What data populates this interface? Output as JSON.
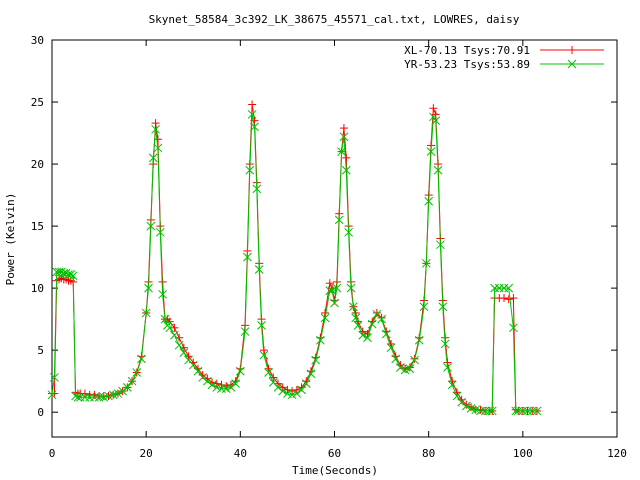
{
  "chart_data": {
    "type": "line",
    "title": "Skynet_58584_3c392_LK_38675_45571_cal.txt, LOWRES, daisy",
    "xlabel": "Time(Seconds)",
    "ylabel": "Power (Kelvin)",
    "xlim": [
      0,
      120
    ],
    "ylim": [
      -2,
      30
    ],
    "xticks": [
      0,
      20,
      40,
      60,
      80,
      100,
      120
    ],
    "yticks": [
      0,
      5,
      10,
      15,
      20,
      25,
      30
    ],
    "grid": false,
    "legend_position": "top-right",
    "series": [
      {
        "name": "XL-70.13 Tsys:70.91",
        "color": "#ff0000",
        "marker": "plus",
        "points": [
          [
            0,
            1.5
          ],
          [
            0.5,
            1.5
          ],
          [
            1,
            10.6
          ],
          [
            1.5,
            10.7
          ],
          [
            2,
            10.8
          ],
          [
            2.5,
            10.7
          ],
          [
            3,
            10.7
          ],
          [
            3.5,
            10.6
          ],
          [
            4,
            10.6
          ],
          [
            4.5,
            10.5
          ],
          [
            5,
            1.6
          ],
          [
            5.5,
            1.5
          ],
          [
            6,
            1.5
          ],
          [
            7,
            1.5
          ],
          [
            8,
            1.4
          ],
          [
            9,
            1.4
          ],
          [
            10,
            1.3
          ],
          [
            11,
            1.3
          ],
          [
            12,
            1.3
          ],
          [
            13,
            1.4
          ],
          [
            14,
            1.5
          ],
          [
            15,
            1.7
          ],
          [
            16,
            2.0
          ],
          [
            17,
            2.5
          ],
          [
            18,
            3.2
          ],
          [
            19,
            4.5
          ],
          [
            20,
            8.0
          ],
          [
            20.5,
            10.5
          ],
          [
            21,
            15.5
          ],
          [
            21.5,
            20.0
          ],
          [
            22,
            23.3
          ],
          [
            22.5,
            22.0
          ],
          [
            23,
            15.0
          ],
          [
            23.5,
            10.5
          ],
          [
            24,
            7.5
          ],
          [
            24.5,
            7.5
          ],
          [
            25,
            7.3
          ],
          [
            26,
            6.8
          ],
          [
            27,
            6.0
          ],
          [
            28,
            5.2
          ],
          [
            29,
            4.5
          ],
          [
            30,
            4.0
          ],
          [
            31,
            3.5
          ],
          [
            32,
            3.0
          ],
          [
            33,
            2.7
          ],
          [
            34,
            2.4
          ],
          [
            35,
            2.3
          ],
          [
            36,
            2.2
          ],
          [
            37,
            2.1
          ],
          [
            38,
            2.2
          ],
          [
            39,
            2.5
          ],
          [
            40,
            3.5
          ],
          [
            41,
            7.0
          ],
          [
            41.5,
            13.0
          ],
          [
            42,
            20.0
          ],
          [
            42.5,
            24.8
          ],
          [
            43,
            23.5
          ],
          [
            43.5,
            18.5
          ],
          [
            44,
            12.0
          ],
          [
            44.5,
            7.5
          ],
          [
            45,
            5.0
          ],
          [
            46,
            3.5
          ],
          [
            47,
            2.8
          ],
          [
            48,
            2.3
          ],
          [
            49,
            2.0
          ],
          [
            50,
            1.8
          ],
          [
            51,
            1.7
          ],
          [
            52,
            1.8
          ],
          [
            53,
            2.0
          ],
          [
            54,
            2.5
          ],
          [
            55,
            3.3
          ],
          [
            56,
            4.4
          ],
          [
            57,
            6.0
          ],
          [
            58,
            8.0
          ],
          [
            59,
            10.4
          ],
          [
            59.5,
            10.0
          ],
          [
            60,
            9.0
          ],
          [
            60.5,
            10.5
          ],
          [
            61,
            16.0
          ],
          [
            61.5,
            21.0
          ],
          [
            62,
            22.9
          ],
          [
            62.5,
            20.5
          ],
          [
            63,
            15.0
          ],
          [
            63.5,
            10.5
          ],
          [
            64,
            8.5
          ],
          [
            64.5,
            8.0
          ],
          [
            65,
            7.3
          ],
          [
            66,
            6.5
          ],
          [
            67,
            6.3
          ],
          [
            68,
            7.3
          ],
          [
            69,
            8.0
          ],
          [
            70,
            7.6
          ],
          [
            71,
            6.5
          ],
          [
            72,
            5.5
          ],
          [
            73,
            4.5
          ],
          [
            74,
            3.8
          ],
          [
            75,
            3.5
          ],
          [
            76,
            3.6
          ],
          [
            77,
            4.3
          ],
          [
            78,
            6.0
          ],
          [
            79,
            9.0
          ],
          [
            79.5,
            12.0
          ],
          [
            80,
            17.5
          ],
          [
            80.5,
            21.5
          ],
          [
            81,
            24.5
          ],
          [
            81.5,
            24.0
          ],
          [
            82,
            20.0
          ],
          [
            82.5,
            14.0
          ],
          [
            83,
            9.0
          ],
          [
            83.5,
            6.0
          ],
          [
            84,
            4.0
          ],
          [
            85,
            2.5
          ],
          [
            86,
            1.6
          ],
          [
            87,
            1.0
          ],
          [
            88,
            0.6
          ],
          [
            89,
            0.4
          ],
          [
            90,
            0.2
          ],
          [
            91,
            0.2
          ],
          [
            92,
            0.1
          ],
          [
            93,
            0.1
          ],
          [
            93.5,
            0.1
          ],
          [
            94,
            9.2
          ],
          [
            95,
            9.2
          ],
          [
            96,
            9.2
          ],
          [
            97,
            9.1
          ],
          [
            98,
            9.2
          ],
          [
            98.5,
            0.2
          ],
          [
            99,
            0.1
          ],
          [
            100,
            0.1
          ],
          [
            101,
            0.1
          ],
          [
            102,
            0.1
          ],
          [
            103,
            0.1
          ]
        ]
      },
      {
        "name": "YR-53.23 Tsys:53.89",
        "color": "#00c000",
        "marker": "cross",
        "points": [
          [
            0,
            1.4
          ],
          [
            0.5,
            2.8
          ],
          [
            1,
            11.3
          ],
          [
            1.5,
            11.3
          ],
          [
            2,
            11.3
          ],
          [
            2.5,
            11.2
          ],
          [
            3,
            11.2
          ],
          [
            3.5,
            11.1
          ],
          [
            4,
            11.1
          ],
          [
            4.5,
            11.0
          ],
          [
            5,
            1.3
          ],
          [
            5.5,
            1.2
          ],
          [
            6,
            1.2
          ],
          [
            7,
            1.2
          ],
          [
            8,
            1.2
          ],
          [
            9,
            1.2
          ],
          [
            10,
            1.2
          ],
          [
            11,
            1.2
          ],
          [
            12,
            1.3
          ],
          [
            13,
            1.4
          ],
          [
            14,
            1.5
          ],
          [
            15,
            1.7
          ],
          [
            16,
            2.0
          ],
          [
            17,
            2.5
          ],
          [
            18,
            3.2
          ],
          [
            19,
            4.3
          ],
          [
            20,
            8.0
          ],
          [
            20.5,
            10.0
          ],
          [
            21,
            15.0
          ],
          [
            21.5,
            20.5
          ],
          [
            22,
            22.8
          ],
          [
            22.5,
            21.3
          ],
          [
            23,
            14.5
          ],
          [
            23.5,
            9.5
          ],
          [
            24,
            7.5
          ],
          [
            24.5,
            7.0
          ],
          [
            25,
            6.8
          ],
          [
            26,
            6.2
          ],
          [
            27,
            5.4
          ],
          [
            28,
            4.8
          ],
          [
            29,
            4.2
          ],
          [
            30,
            3.8
          ],
          [
            31,
            3.3
          ],
          [
            32,
            2.8
          ],
          [
            33,
            2.5
          ],
          [
            34,
            2.2
          ],
          [
            35,
            2.0
          ],
          [
            36,
            1.9
          ],
          [
            37,
            1.9
          ],
          [
            38,
            2.0
          ],
          [
            39,
            2.3
          ],
          [
            40,
            3.3
          ],
          [
            41,
            6.5
          ],
          [
            41.5,
            12.5
          ],
          [
            42,
            19.5
          ],
          [
            42.5,
            24.0
          ],
          [
            43,
            23.0
          ],
          [
            43.5,
            18.0
          ],
          [
            44,
            11.5
          ],
          [
            44.5,
            7.0
          ],
          [
            45,
            4.6
          ],
          [
            46,
            3.2
          ],
          [
            47,
            2.4
          ],
          [
            48,
            2.0
          ],
          [
            49,
            1.7
          ],
          [
            50,
            1.5
          ],
          [
            51,
            1.4
          ],
          [
            52,
            1.5
          ],
          [
            53,
            1.8
          ],
          [
            54,
            2.3
          ],
          [
            55,
            3.1
          ],
          [
            56,
            4.2
          ],
          [
            57,
            5.8
          ],
          [
            58,
            7.6
          ],
          [
            59,
            9.8
          ],
          [
            59.5,
            9.8
          ],
          [
            60,
            8.8
          ],
          [
            60.5,
            10.0
          ],
          [
            61,
            15.5
          ],
          [
            61.5,
            21.0
          ],
          [
            62,
            22.2
          ],
          [
            62.5,
            19.5
          ],
          [
            63,
            14.5
          ],
          [
            63.5,
            10.0
          ],
          [
            64,
            8.5
          ],
          [
            64.5,
            7.6
          ],
          [
            65,
            7.0
          ],
          [
            66,
            6.2
          ],
          [
            67,
            6.0
          ],
          [
            68,
            7.1
          ],
          [
            69,
            7.9
          ],
          [
            70,
            7.5
          ],
          [
            71,
            6.3
          ],
          [
            72,
            5.2
          ],
          [
            73,
            4.3
          ],
          [
            74,
            3.6
          ],
          [
            75,
            3.4
          ],
          [
            76,
            3.5
          ],
          [
            77,
            4.2
          ],
          [
            78,
            5.8
          ],
          [
            79,
            8.5
          ],
          [
            79.5,
            12.0
          ],
          [
            80,
            17.0
          ],
          [
            80.5,
            21.0
          ],
          [
            81,
            23.8
          ],
          [
            81.5,
            23.5
          ],
          [
            82,
            19.5
          ],
          [
            82.5,
            13.5
          ],
          [
            83,
            8.5
          ],
          [
            83.5,
            5.5
          ],
          [
            84,
            3.6
          ],
          [
            85,
            2.2
          ],
          [
            86,
            1.3
          ],
          [
            87,
            0.8
          ],
          [
            88,
            0.5
          ],
          [
            89,
            0.3
          ],
          [
            90,
            0.2
          ],
          [
            91,
            0.1
          ],
          [
            92,
            0.1
          ],
          [
            93,
            0.1
          ],
          [
            93.5,
            0.1
          ],
          [
            94,
            10.0
          ],
          [
            95,
            10.0
          ],
          [
            96,
            10.0
          ],
          [
            97,
            10.0
          ],
          [
            98,
            6.8
          ],
          [
            98.5,
            0.1
          ],
          [
            99,
            0.1
          ],
          [
            100,
            0.1
          ],
          [
            101,
            0.1
          ],
          [
            102,
            0.1
          ],
          [
            103,
            0.1
          ]
        ]
      }
    ]
  }
}
